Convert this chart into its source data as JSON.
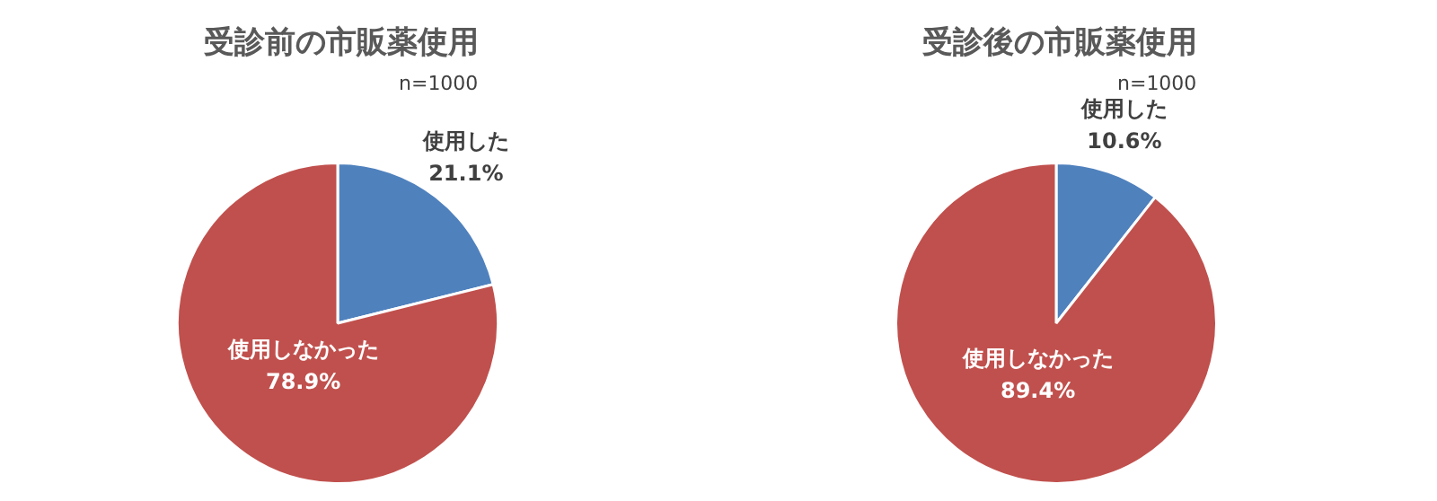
{
  "chart_data": [
    {
      "type": "pie",
      "title": "受診前の市販薬使用",
      "subtitle": "n=1000",
      "categories": [
        "使用した",
        "使用しなかった"
      ],
      "values": [
        21.1,
        78.9
      ],
      "value_labels": [
        "21.1%",
        "78.9%"
      ],
      "colors": [
        "#4f81bd",
        "#c0504d"
      ]
    },
    {
      "type": "pie",
      "title": "受診後の市販薬使用",
      "subtitle": "n=1000",
      "categories": [
        "使用した",
        "使用しなかった"
      ],
      "values": [
        10.6,
        89.4
      ],
      "value_labels": [
        "10.6%",
        "89.4%"
      ],
      "colors": [
        "#4f81bd",
        "#c0504d"
      ]
    }
  ]
}
